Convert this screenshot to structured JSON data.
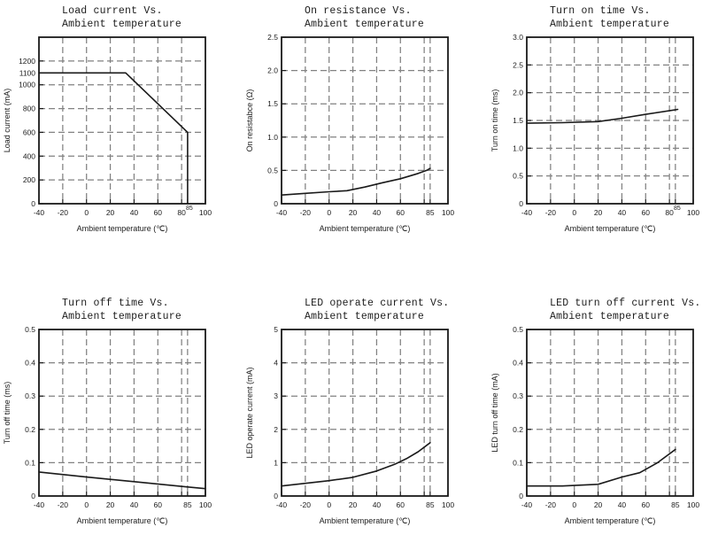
{
  "page": {
    "background": "#ffffff",
    "text_color": "#1c1c1c",
    "grid_color": "#818181",
    "line_color": "#1a1a1a"
  },
  "chart_data": [
    {
      "type": "line",
      "title_line1": "Load current Vs.",
      "title_line2": "Ambient temperature",
      "xlabel": "Ambient temperature (℃)",
      "ylabel": "Load current (mA)",
      "xlim": [
        -40,
        100
      ],
      "ylim": [
        0,
        1400
      ],
      "grid": "dashed",
      "legend": "none",
      "xticks": [
        {
          "v": -40,
          "label": "-40"
        },
        {
          "v": -20,
          "label": "-20"
        },
        {
          "v": 0,
          "label": "0"
        },
        {
          "v": 20,
          "label": "20"
        },
        {
          "v": 40,
          "label": "40"
        },
        {
          "v": 60,
          "label": "60"
        },
        {
          "v": 80,
          "label": "80"
        },
        {
          "v": 85,
          "label": "85",
          "small": true
        },
        {
          "v": 100,
          "label": "100"
        }
      ],
      "yticks": [
        {
          "v": 0,
          "label": "0"
        },
        {
          "v": 200,
          "label": "200"
        },
        {
          "v": 400,
          "label": "400"
        },
        {
          "v": 600,
          "label": "600"
        },
        {
          "v": 800,
          "label": "800"
        },
        {
          "v": 1000,
          "label": "1000"
        },
        {
          "v": 1100,
          "label": "1100"
        },
        {
          "v": 1200,
          "label": "1200"
        }
      ],
      "grid_x": [
        -20,
        0,
        20,
        40,
        60,
        80
      ],
      "grid_y": [
        200,
        400,
        600,
        800,
        1000,
        1200
      ],
      "points": [
        [
          -40,
          1100
        ],
        [
          33,
          1100
        ],
        [
          85,
          600
        ],
        [
          85,
          0
        ]
      ]
    },
    {
      "type": "line",
      "title_line1": "On resistance Vs.",
      "title_line2": "Ambient temperature",
      "xlabel": "Ambient temperature (℃)",
      "ylabel": "On resistabce (Ω)",
      "xlim": [
        -40,
        100
      ],
      "ylim": [
        0,
        2.5
      ],
      "grid": "dashed",
      "legend": "none",
      "xticks": [
        {
          "v": -40,
          "label": "-40"
        },
        {
          "v": -20,
          "label": "-20"
        },
        {
          "v": 0,
          "label": "0"
        },
        {
          "v": 20,
          "label": "20"
        },
        {
          "v": 40,
          "label": "40"
        },
        {
          "v": 60,
          "label": "60"
        },
        {
          "v": 80,
          "label": ""
        },
        {
          "v": 85,
          "label": "85"
        },
        {
          "v": 100,
          "label": "100"
        }
      ],
      "yticks": [
        {
          "v": 0,
          "label": "0"
        },
        {
          "v": 0.5,
          "label": "0.5"
        },
        {
          "v": 1.0,
          "label": "1.0"
        },
        {
          "v": 1.5,
          "label": "1.5"
        },
        {
          "v": 2.0,
          "label": "2.0"
        },
        {
          "v": 2.5,
          "label": "2.5"
        }
      ],
      "grid_x": [
        -20,
        0,
        20,
        40,
        60,
        80,
        85
      ],
      "grid_y": [
        0.5,
        1.0,
        1.5,
        2.0
      ],
      "points": [
        [
          -40,
          0.13
        ],
        [
          -20,
          0.155
        ],
        [
          0,
          0.18
        ],
        [
          15,
          0.195
        ],
        [
          30,
          0.25
        ],
        [
          45,
          0.315
        ],
        [
          60,
          0.375
        ],
        [
          75,
          0.455
        ],
        [
          82,
          0.5
        ],
        [
          85,
          0.53
        ]
      ]
    },
    {
      "type": "line",
      "title_line1": "Turn on time Vs.",
      "title_line2": "Ambient temperature",
      "xlabel": "Ambient temperature (℃)",
      "ylabel": "Turn on time (ms)",
      "xlim": [
        -40,
        100
      ],
      "ylim": [
        0,
        3.0
      ],
      "grid": "dashed",
      "legend": "none",
      "xticks": [
        {
          "v": -40,
          "label": "-40"
        },
        {
          "v": -20,
          "label": "-20"
        },
        {
          "v": 0,
          "label": "0"
        },
        {
          "v": 20,
          "label": "20"
        },
        {
          "v": 40,
          "label": "40"
        },
        {
          "v": 60,
          "label": "60"
        },
        {
          "v": 80,
          "label": "80"
        },
        {
          "v": 85,
          "label": "85",
          "small": true
        },
        {
          "v": 100,
          "label": "100"
        }
      ],
      "yticks": [
        {
          "v": 0,
          "label": "0"
        },
        {
          "v": 0.5,
          "label": "0.5"
        },
        {
          "v": 1.0,
          "label": "1.0"
        },
        {
          "v": 1.5,
          "label": "1.5"
        },
        {
          "v": 2.0,
          "label": "2.0"
        },
        {
          "v": 2.5,
          "label": "2.5"
        },
        {
          "v": 3.0,
          "label": "3.0"
        }
      ],
      "grid_x": [
        -20,
        0,
        20,
        40,
        60,
        80,
        85
      ],
      "grid_y": [
        0.5,
        1.0,
        1.5,
        2.0,
        2.5
      ],
      "points": [
        [
          -40,
          1.45
        ],
        [
          -10,
          1.46
        ],
        [
          20,
          1.48
        ],
        [
          40,
          1.54
        ],
        [
          60,
          1.61
        ],
        [
          87,
          1.7
        ]
      ]
    },
    {
      "type": "line",
      "title_line1": "Turn off time Vs.",
      "title_line2": "Ambient temperature",
      "xlabel": "Ambient temperature (℃)",
      "ylabel": "Turn off time (ms)",
      "xlim": [
        -40,
        100
      ],
      "ylim": [
        0,
        0.5
      ],
      "grid": "dashed",
      "legend": "none",
      "xticks": [
        {
          "v": -40,
          "label": "-40"
        },
        {
          "v": -20,
          "label": "-20"
        },
        {
          "v": 0,
          "label": "0"
        },
        {
          "v": 20,
          "label": "20"
        },
        {
          "v": 40,
          "label": "40"
        },
        {
          "v": 60,
          "label": "60"
        },
        {
          "v": 80,
          "label": ""
        },
        {
          "v": 85,
          "label": "85"
        },
        {
          "v": 100,
          "label": "100"
        }
      ],
      "yticks": [
        {
          "v": 0,
          "label": "0"
        },
        {
          "v": 0.1,
          "label": "0.1"
        },
        {
          "v": 0.2,
          "label": "0.2"
        },
        {
          "v": 0.3,
          "label": "0.3"
        },
        {
          "v": 0.4,
          "label": "0.4"
        },
        {
          "v": 0.5,
          "label": "0.5"
        }
      ],
      "grid_x": [
        -20,
        0,
        20,
        40,
        60,
        80,
        85
      ],
      "grid_y": [
        0.1,
        0.2,
        0.3,
        0.4
      ],
      "points": [
        [
          -40,
          0.072
        ],
        [
          0,
          0.057
        ],
        [
          40,
          0.043
        ],
        [
          85,
          0.027
        ],
        [
          100,
          0.022
        ]
      ]
    },
    {
      "type": "line",
      "title_line1": "LED operate current Vs.",
      "title_line2": "Ambient temperature",
      "xlabel": "Ambient temperature (℃)",
      "ylabel": "LED operate current (mA)",
      "xlim": [
        -40,
        100
      ],
      "ylim": [
        0,
        5
      ],
      "grid": "dashed",
      "legend": "none",
      "xticks": [
        {
          "v": -40,
          "label": "-40"
        },
        {
          "v": -20,
          "label": "-20"
        },
        {
          "v": 0,
          "label": "0"
        },
        {
          "v": 20,
          "label": "20"
        },
        {
          "v": 40,
          "label": "40"
        },
        {
          "v": 60,
          "label": "60"
        },
        {
          "v": 80,
          "label": ""
        },
        {
          "v": 85,
          "label": "85"
        },
        {
          "v": 100,
          "label": "100"
        }
      ],
      "yticks": [
        {
          "v": 0,
          "label": "0"
        },
        {
          "v": 1,
          "label": "1"
        },
        {
          "v": 2,
          "label": "2"
        },
        {
          "v": 3,
          "label": "3"
        },
        {
          "v": 4,
          "label": "4"
        },
        {
          "v": 5,
          "label": "5"
        }
      ],
      "grid_x": [
        -20,
        0,
        20,
        40,
        60,
        80,
        85
      ],
      "grid_y": [
        1,
        2,
        3,
        4
      ],
      "points": [
        [
          -40,
          0.3
        ],
        [
          -20,
          0.38
        ],
        [
          0,
          0.46
        ],
        [
          20,
          0.56
        ],
        [
          40,
          0.75
        ],
        [
          55,
          0.95
        ],
        [
          65,
          1.12
        ],
        [
          75,
          1.33
        ],
        [
          85,
          1.6
        ]
      ]
    },
    {
      "type": "line",
      "title_line1": "LED turn off current Vs.",
      "title_line2": "Ambient temperature",
      "xlabel": "Ambient temperature (℃)",
      "ylabel": "LED turn off time (mA)",
      "xlim": [
        -40,
        100
      ],
      "ylim": [
        0,
        0.5
      ],
      "grid": "dashed",
      "legend": "none",
      "xticks": [
        {
          "v": -40,
          "label": "-40"
        },
        {
          "v": -20,
          "label": "-20"
        },
        {
          "v": 0,
          "label": "0"
        },
        {
          "v": 20,
          "label": "20"
        },
        {
          "v": 40,
          "label": "40"
        },
        {
          "v": 60,
          "label": "60"
        },
        {
          "v": 80,
          "label": ""
        },
        {
          "v": 85,
          "label": "85"
        },
        {
          "v": 100,
          "label": "100"
        }
      ],
      "yticks": [
        {
          "v": 0,
          "label": "0"
        },
        {
          "v": 0.1,
          "label": "0.1"
        },
        {
          "v": 0.2,
          "label": "0.2"
        },
        {
          "v": 0.3,
          "label": "0.3"
        },
        {
          "v": 0.4,
          "label": "0.4"
        },
        {
          "v": 0.5,
          "label": "0.5"
        }
      ],
      "grid_x": [
        -20,
        0,
        20,
        40,
        60,
        80,
        85
      ],
      "grid_y": [
        0.1,
        0.2,
        0.3,
        0.4
      ],
      "points": [
        [
          -40,
          0.03
        ],
        [
          -10,
          0.03
        ],
        [
          20,
          0.035
        ],
        [
          40,
          0.057
        ],
        [
          55,
          0.07
        ],
        [
          70,
          0.1
        ],
        [
          85,
          0.14
        ]
      ]
    }
  ]
}
